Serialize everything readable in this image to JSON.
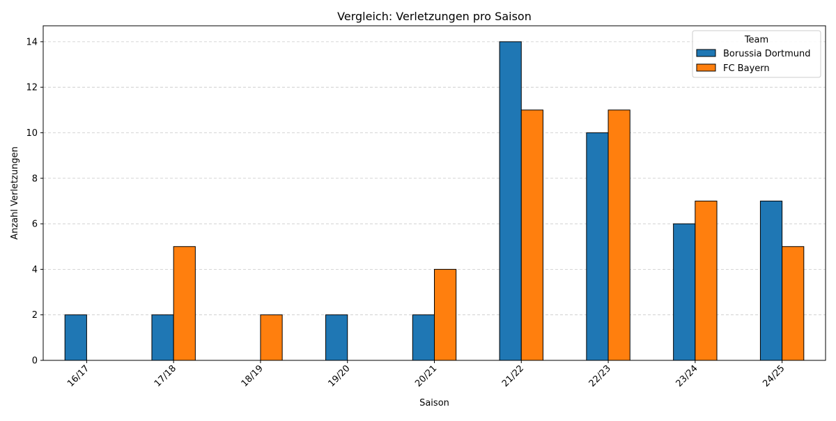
{
  "chart_data": {
    "type": "bar",
    "title": "Vergleich: Verletzungen pro Saison",
    "xlabel": "Saison",
    "ylabel": "Anzahl Verletzungen",
    "categories": [
      "16/17",
      "17/18",
      "18/19",
      "19/20",
      "20/21",
      "21/22",
      "22/23",
      "23/24",
      "24/25"
    ],
    "series": [
      {
        "name": "Borussia Dortmund",
        "color": "#1f77b4",
        "values": [
          2,
          2,
          0,
          2,
          2,
          14,
          10,
          6,
          7
        ]
      },
      {
        "name": "FC Bayern",
        "color": "#ff7f0e",
        "values": [
          0,
          5,
          2,
          0,
          4,
          11,
          11,
          7,
          5
        ]
      }
    ],
    "ylim": [
      0,
      14.7
    ],
    "yticks": [
      0,
      2,
      4,
      6,
      8,
      10,
      12,
      14
    ],
    "grid": "y-dashed",
    "legend": {
      "title": "Team",
      "placement": "top-right"
    }
  }
}
